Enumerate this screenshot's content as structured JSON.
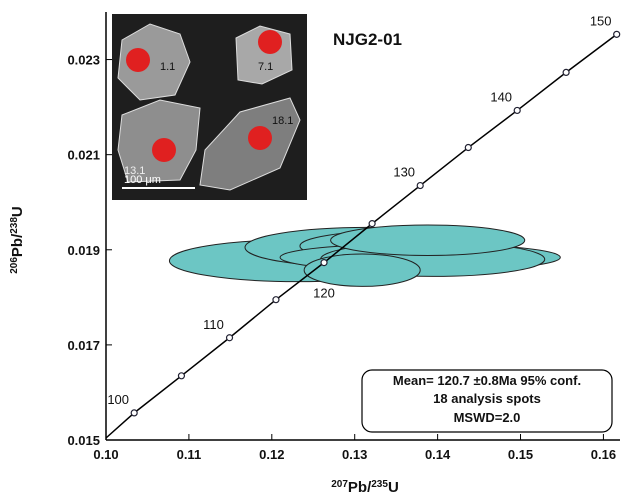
{
  "chart_data": {
    "type": "concordia",
    "title": "NJG2-01",
    "x_label": [
      "207",
      "Pb/",
      "235",
      "U"
    ],
    "y_label": [
      "206",
      "Pb/",
      "238",
      "U"
    ],
    "xlim": [
      0.1,
      0.162
    ],
    "ylim": [
      0.015,
      0.024
    ],
    "xticks": [
      {
        "value": 0.1,
        "label": "0.10"
      },
      0.11,
      0.12,
      0.13,
      0.14,
      0.15,
      0.16
    ],
    "yticks": [
      0.015,
      0.017,
      0.019,
      0.021,
      0.023
    ],
    "concordia": {
      "color": "#000000",
      "x": [
        0.1034,
        0.1091,
        0.1149,
        0.1205,
        0.1263,
        0.1321,
        0.1379,
        0.1437,
        0.1496,
        0.1555,
        0.1616
      ],
      "y": [
        0.01557,
        0.01635,
        0.01715,
        0.01795,
        0.01873,
        0.01955,
        0.02035,
        0.02115,
        0.02193,
        0.02273,
        0.02353
      ],
      "labels": [
        100,
        null,
        110,
        null,
        120,
        null,
        130,
        null,
        140,
        null,
        150
      ]
    },
    "ellipses": {
      "color": "#6cc6c4",
      "x": [
        0.1231,
        0.1315,
        0.1351,
        0.1379,
        0.1394,
        0.1309,
        0.1388
      ],
      "y": [
        0.01877,
        0.01905,
        0.01908,
        0.01884,
        0.0188,
        0.01857,
        0.0192
      ],
      "x_err": [
        0.01545,
        0.01473,
        0.01171,
        0.0169,
        0.01352,
        0.007,
        0.01171
      ],
      "y_err": [
        0.00044,
        0.00042,
        0.00032,
        0.00029,
        0.00036,
        0.00034,
        0.00032
      ]
    },
    "annotation": [
      "Mean= 120.7 ±0.8Ma 95% conf.",
      "18 analysis spots",
      "MSWD=2.0"
    ],
    "inset": {
      "spot_labels": [
        "1.1",
        "7.1",
        "13.1",
        "18.1"
      ],
      "scale_label": "100 μm"
    }
  }
}
